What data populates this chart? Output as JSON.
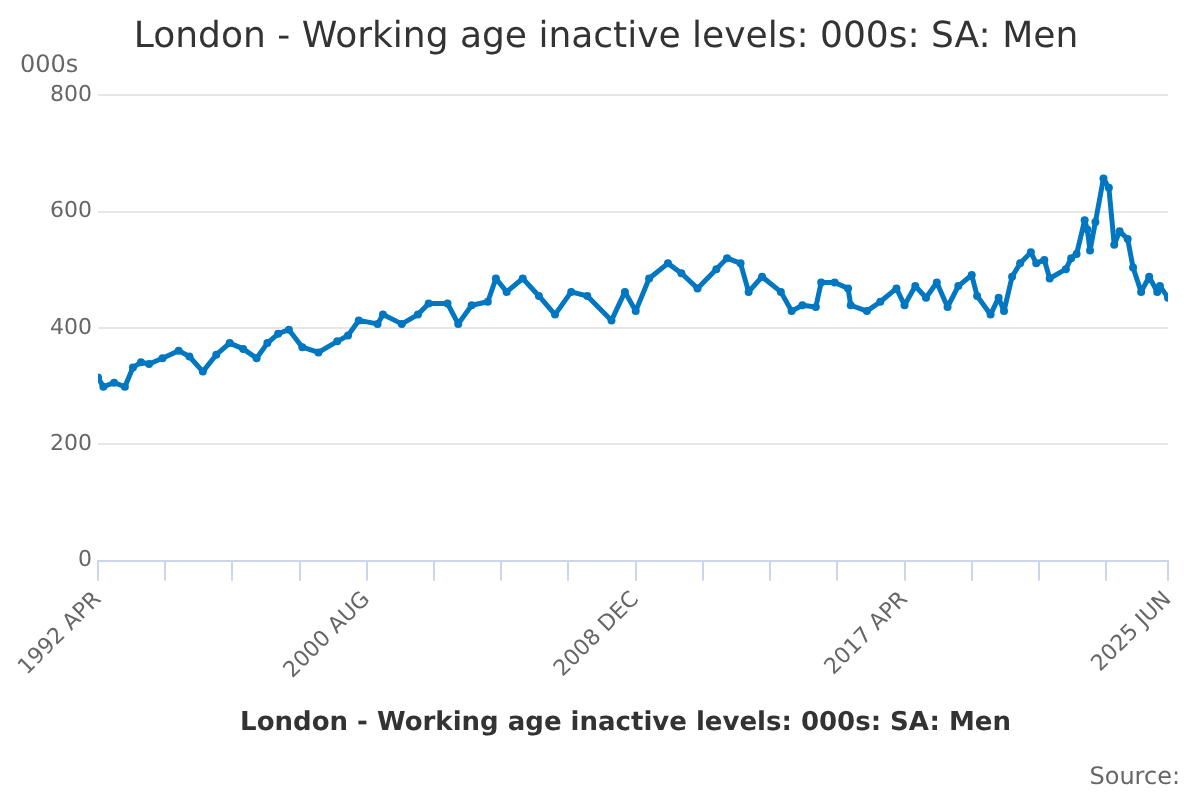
{
  "chart_data": {
    "type": "line",
    "title": "London - Working age inactive levels: 000s: SA: Men",
    "ylabel": "000s",
    "annotations": [
      "Source:"
    ],
    "x": [
      "1992-04",
      "1992-06",
      "1992-10",
      "1993-02",
      "1993-05",
      "1993-08",
      "1993-11",
      "1994-04",
      "1994-10",
      "1995-02",
      "1995-07",
      "1995-12",
      "1996-05",
      "1996-10",
      "1997-03",
      "1997-07",
      "1997-11",
      "1998-03",
      "1998-08",
      "1999-02",
      "1999-09",
      "2000-01",
      "2000-05",
      "2000-12",
      "2001-02",
      "2001-09",
      "2002-03",
      "2002-07",
      "2003-02",
      "2003-06",
      "2003-11",
      "2004-05",
      "2004-08",
      "2004-12",
      "2005-06",
      "2005-12",
      "2006-06",
      "2006-12",
      "2007-06",
      "2008-03",
      "2008-08",
      "2008-12",
      "2009-05",
      "2009-12",
      "2010-05",
      "2010-11",
      "2011-06",
      "2011-10",
      "2012-03",
      "2012-06",
      "2012-11",
      "2013-06",
      "2013-10",
      "2014-02",
      "2014-07",
      "2014-09",
      "2015-02",
      "2015-07",
      "2015-08",
      "2016-02",
      "2016-07",
      "2017-01",
      "2017-04",
      "2017-08",
      "2017-12",
      "2018-04",
      "2018-08",
      "2018-12",
      "2019-05",
      "2019-07",
      "2019-12",
      "2020-03",
      "2020-05",
      "2020-08",
      "2020-11",
      "2021-03",
      "2021-05",
      "2021-08",
      "2021-10",
      "2022-04",
      "2022-06",
      "2022-08",
      "2022-11",
      "2022-12",
      "2023-01",
      "2023-03",
      "2023-06",
      "2023-08",
      "2023-10",
      "2023-12",
      "2024-03",
      "2024-05",
      "2024-08",
      "2024-11",
      "2025-02",
      "2025-03",
      "2025-06"
    ],
    "series": [
      {
        "name": "London - Working age inactive levels: 000s: SA: Men",
        "color": "#0077c0",
        "values": [
          315,
          299,
          306,
          299,
          332,
          341,
          338,
          348,
          361,
          351,
          325,
          354,
          374,
          364,
          348,
          374,
          390,
          397,
          367,
          358,
          377,
          387,
          413,
          407,
          423,
          407,
          423,
          442,
          442,
          407,
          439,
          445,
          485,
          462,
          485,
          455,
          423,
          462,
          455,
          413,
          462,
          429,
          485,
          511,
          494,
          468,
          501,
          520,
          511,
          462,
          488,
          462,
          429,
          439,
          436,
          478,
          478,
          468,
          439,
          429,
          445,
          468,
          439,
          472,
          452,
          478,
          436,
          472,
          491,
          455,
          423,
          452,
          429,
          488,
          511,
          530,
          511,
          517,
          485,
          501,
          520,
          527,
          585,
          569,
          533,
          582,
          657,
          641,
          543,
          566,
          553,
          504,
          462,
          488,
          462,
          472,
          452
        ]
      }
    ],
    "xlim": [
      "1992-04",
      "2025-06"
    ],
    "xticks": [
      {
        "value": "1992-04",
        "label": "1992 APR"
      },
      {
        "value": "1994-05",
        "label": null
      },
      {
        "value": "1996-06",
        "label": null
      },
      {
        "value": "1998-07",
        "label": null
      },
      {
        "value": "2000-08",
        "label": "2000 AUG"
      },
      {
        "value": "2002-09",
        "label": null
      },
      {
        "value": "2004-10",
        "label": null
      },
      {
        "value": "2006-11",
        "label": null
      },
      {
        "value": "2008-12",
        "label": "2008 DEC"
      },
      {
        "value": "2011-01",
        "label": null
      },
      {
        "value": "2013-02",
        "label": null
      },
      {
        "value": "2015-03",
        "label": null
      },
      {
        "value": "2017-04",
        "label": "2017 APR"
      },
      {
        "value": "2019-05",
        "label": null
      },
      {
        "value": "2021-06",
        "label": null
      },
      {
        "value": "2023-07",
        "label": null
      },
      {
        "value": "2025-06",
        "label": "2025 JUN"
      }
    ],
    "ylim": [
      0,
      800
    ],
    "yticks": [
      0,
      200,
      400,
      600,
      800
    ],
    "grid": "y",
    "legend": "bottom",
    "marker": "circle",
    "line_style": "solid"
  }
}
